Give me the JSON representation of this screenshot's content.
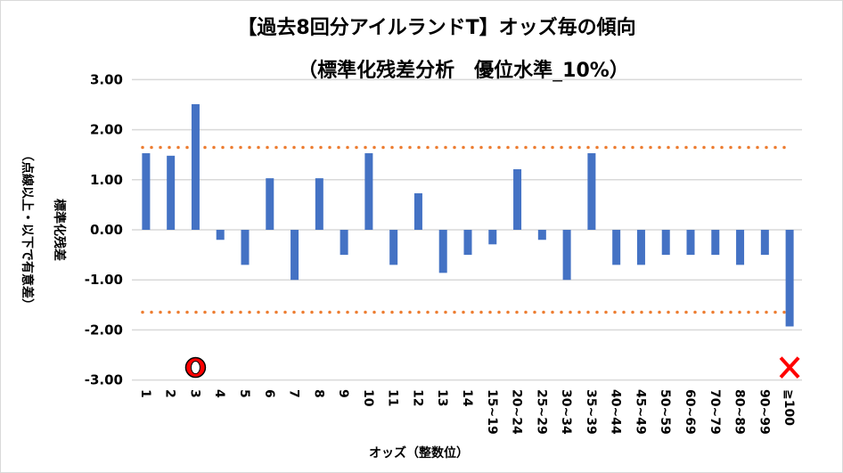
{
  "chart_data": {
    "type": "bar",
    "title": "【過去8回分アイルランドT】オッズ毎の傾向",
    "subtitle": "（標準化残差分析　優位水準_10%）",
    "xlabel": "オッズ（整数位）",
    "ylabel": "標準化残差",
    "ylabel2": "（点線以上・以下で有意差）",
    "ylim": [
      -3,
      3
    ],
    "yticks": [
      "3.00",
      "2.00",
      "1.00",
      "0.00",
      "-1.00",
      "-2.00",
      "-3.00"
    ],
    "ytick_values": [
      3,
      2,
      1,
      0,
      -1,
      -2,
      -3
    ],
    "grid": true,
    "categories": [
      "1",
      "2",
      "3",
      "4",
      "5",
      "6",
      "7",
      "8",
      "9",
      "10",
      "11",
      "12",
      "13",
      "14",
      "15~19",
      "20~24",
      "25~29",
      "30~34",
      "35~39",
      "40~44",
      "45~49",
      "50~59",
      "60~69",
      "70~79",
      "80~89",
      "90~99",
      "≧100"
    ],
    "values": [
      1.53,
      1.48,
      2.51,
      -0.2,
      -0.7,
      1.03,
      -1.0,
      1.03,
      -0.5,
      1.53,
      -0.7,
      0.73,
      -0.86,
      -0.5,
      -0.29,
      1.21,
      -0.2,
      -1.0,
      1.53,
      -0.7,
      -0.7,
      -0.5,
      -0.5,
      -0.5,
      -0.7,
      -0.5,
      -1.93
    ],
    "threshold_lines": [
      1.645,
      -1.645
    ],
    "markers": [
      {
        "category": "3",
        "symbol": "circle",
        "value": -2.75
      },
      {
        "category": "≧100",
        "symbol": "cross",
        "value": -2.75
      }
    ],
    "colors": {
      "bar": "#4472C4",
      "threshold": "#ED7D31",
      "grid": "#D9D9D9",
      "marker": "#FF0000"
    }
  }
}
